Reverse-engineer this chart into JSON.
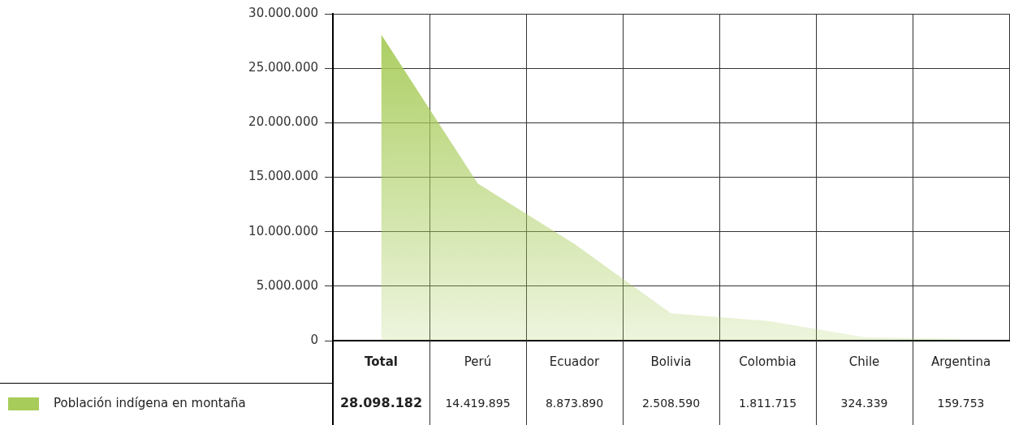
{
  "chart_data": {
    "type": "area",
    "categories": [
      "Total",
      "Perú",
      "Ecuador",
      "Bolivia",
      "Colombia",
      "Chile",
      "Argentina"
    ],
    "series": [
      {
        "name": "Población indígena en montaña",
        "color": "#a8cc5a",
        "values": [
          28098182,
          14419895,
          8873890,
          2508590,
          1811715,
          324339,
          159753
        ],
        "value_labels": [
          "28.098.182",
          "14.419.895",
          "8.873.890",
          "2.508.590",
          "1.811.715",
          "324.339",
          "159.753"
        ]
      }
    ],
    "ylim": [
      0,
      30000000
    ],
    "yticks": [
      0,
      {
        "value": 5000000,
        "label": "5.000.000"
      },
      {
        "value": 10000000,
        "label": "10.000.000"
      },
      {
        "value": 15000000,
        "label": "15.000.000"
      },
      {
        "value": 20000000,
        "label": "20.000.000"
      },
      {
        "value": 25000000,
        "label": "25.000.000"
      },
      {
        "value": 30000000,
        "label": "30.000.000"
      }
    ],
    "grid": true,
    "legend": "bottom left"
  }
}
